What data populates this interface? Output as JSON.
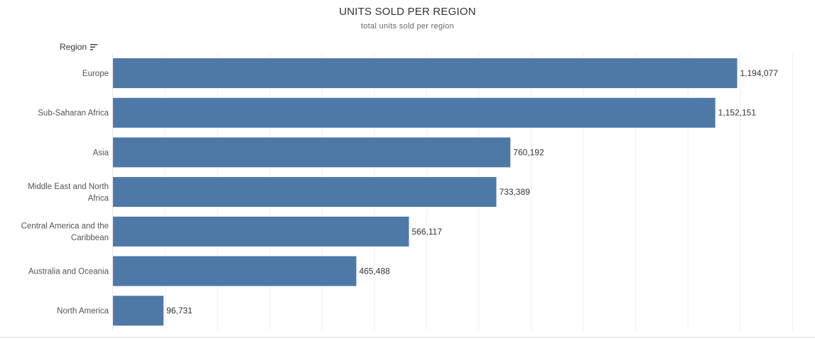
{
  "chart_data": {
    "type": "bar",
    "orientation": "horizontal",
    "title": "UNITS SOLD PER REGION",
    "subtitle": "total units sold per region",
    "row_header": "Region",
    "categories": [
      "Europe",
      "Sub-Saharan Africa",
      "Asia",
      "Middle East and North Africa",
      "Central America and the Caribbean",
      "Australia and Oceania",
      "North America"
    ],
    "category_lines": [
      [
        "Europe"
      ],
      [
        "Sub-Saharan Africa"
      ],
      [
        "Asia"
      ],
      [
        "Middle East and North",
        "Africa"
      ],
      [
        "Central America and the",
        "Caribbean"
      ],
      [
        "Australia and Oceania"
      ],
      [
        "North America"
      ]
    ],
    "values": [
      1194077,
      1152151,
      760192,
      733389,
      566117,
      465488,
      96731
    ],
    "value_labels": [
      "1,194,077",
      "1,152,151",
      "760,192",
      "733,389",
      "566,117",
      "465,488",
      "96,731"
    ],
    "xlim": [
      0,
      1300000
    ],
    "grid_step": 100000,
    "grid": true,
    "sort": "descending",
    "bar_color": "#4e79a7"
  }
}
